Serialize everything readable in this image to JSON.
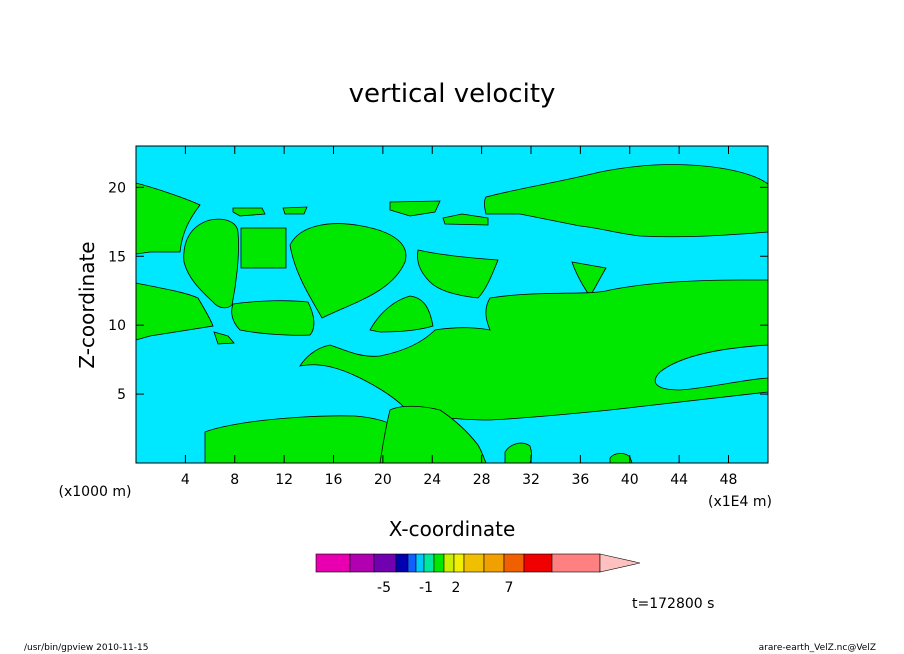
{
  "chart_data": {
    "type": "heatmap",
    "title": "vertical velocity",
    "xlabel": "X-coordinate",
    "ylabel": "Z-coordinate",
    "x_unit": "(x1E4 m)",
    "y_unit": "(x1000 m)",
    "xlim": [
      0,
      51.2
    ],
    "ylim": [
      0,
      23
    ],
    "x_ticks": [
      4,
      8,
      12,
      16,
      20,
      24,
      28,
      32,
      36,
      40,
      44,
      48
    ],
    "y_ticks": [
      5,
      10,
      15,
      20
    ],
    "background_color": "#00e8ff",
    "region_color": "#00e800",
    "colorbar": {
      "colors": [
        "#e800b0",
        "#b000b0",
        "#7000b0",
        "#0000b0",
        "#1060ff",
        "#00c8ff",
        "#00e8a0",
        "#00e800",
        "#c8f000",
        "#f0f000",
        "#f0c000",
        "#f0a000",
        "#f06000",
        "#f00000",
        "#ff8080",
        "#ffc0c0"
      ],
      "labels": [
        "-5",
        "-1",
        "2",
        "7"
      ]
    },
    "time_label": "t=172800 s"
  },
  "footer": {
    "left": "/usr/bin/gpview  2010-11-15",
    "right": "arare-earth_VelZ.nc@VelZ"
  }
}
